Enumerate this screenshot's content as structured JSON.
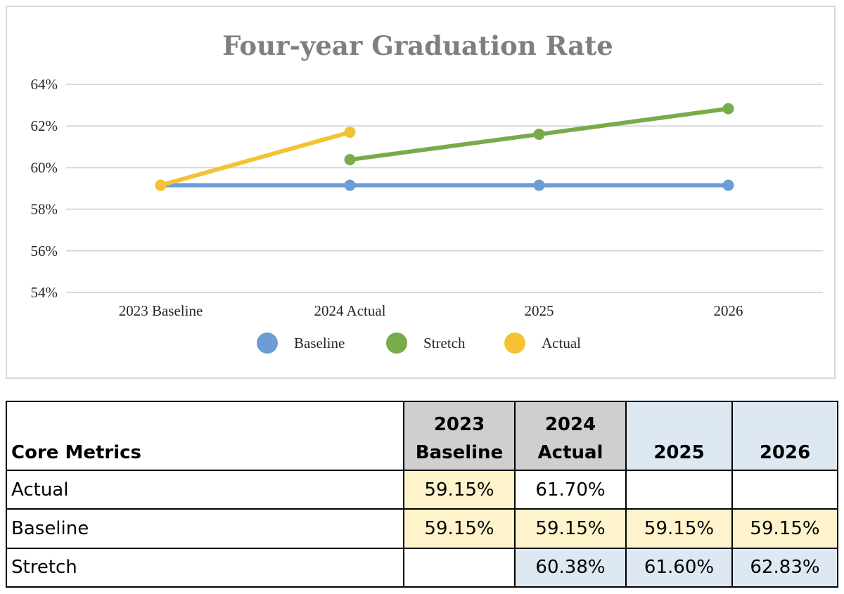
{
  "chart_data": {
    "type": "line",
    "title": "Four-year Graduation Rate",
    "categories": [
      "2023 Baseline",
      "2024 Actual",
      "2025",
      "2026"
    ],
    "y_ticks": [
      "54%",
      "56%",
      "58%",
      "60%",
      "62%",
      "64%"
    ],
    "ylim": [
      54,
      64
    ],
    "grid": true,
    "legend_position": "bottom",
    "series": [
      {
        "name": "Baseline",
        "color": "#6d9dd5",
        "values": [
          59.15,
          59.15,
          59.15,
          59.15
        ]
      },
      {
        "name": "Stretch",
        "color": "#78ab4b",
        "values": [
          null,
          60.38,
          61.6,
          62.83
        ]
      },
      {
        "name": "Actual",
        "color": "#f4c232",
        "values": [
          59.15,
          61.7,
          null,
          null
        ]
      }
    ]
  },
  "table": {
    "header": {
      "metric": "Core Metrics",
      "col1_line1": "2023",
      "col1_line2": "Baseline",
      "col2_line1": "2024",
      "col2_line2": "Actual",
      "col3": "2025",
      "col4": "2026"
    },
    "rows": [
      {
        "label": "Actual",
        "values": [
          "59.15%",
          "61.70%",
          "",
          ""
        ]
      },
      {
        "label": "Baseline",
        "values": [
          "59.15%",
          "59.15%",
          "59.15%",
          "59.15%"
        ]
      },
      {
        "label": "Stretch",
        "values": [
          "",
          "60.38%",
          "61.60%",
          "62.83%"
        ]
      }
    ]
  }
}
